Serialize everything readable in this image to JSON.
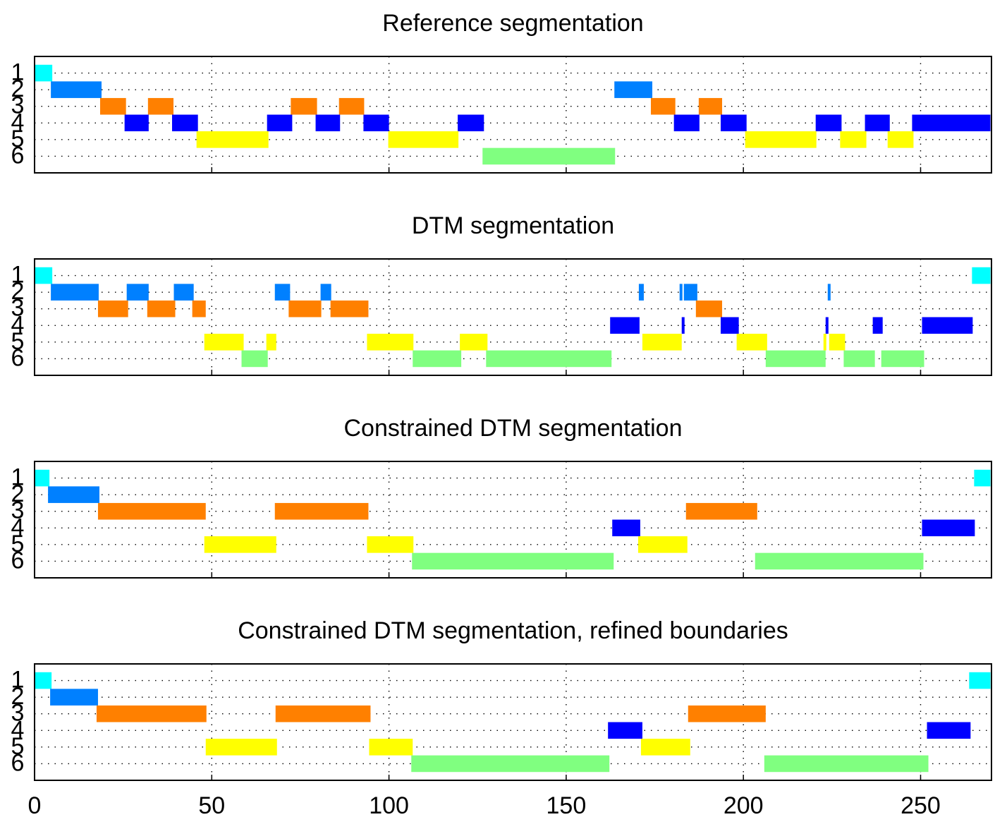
{
  "chart_data": [
    {
      "type": "segments",
      "title": "Reference segmentation",
      "xlim": [
        0,
        270
      ],
      "xticks": [
        0,
        50,
        100,
        150,
        200,
        250
      ],
      "ylim": [
        7,
        0
      ],
      "yticks": [
        1,
        2,
        3,
        4,
        5,
        6
      ],
      "grid": true,
      "series": [
        {
          "row": 1,
          "color": "#00ffff",
          "segments": [
            [
              0,
              5
            ]
          ]
        },
        {
          "row": 2,
          "color": "#0080ff",
          "segments": [
            [
              4.6,
              18.9
            ],
            [
              163.6,
              174.3
            ]
          ]
        },
        {
          "row": 3,
          "color": "#ff8000",
          "segments": [
            [
              18.5,
              25.8
            ],
            [
              32,
              39.2
            ],
            [
              72.3,
              79.7
            ],
            [
              85.9,
              93
            ],
            [
              173.9,
              180.8
            ],
            [
              187.4,
              194
            ]
          ]
        },
        {
          "row": 4,
          "color": "#0000ff",
          "segments": [
            [
              25.4,
              32.2
            ],
            [
              38.8,
              46.1
            ],
            [
              65.6,
              72.7
            ],
            [
              79.3,
              86.2
            ],
            [
              92.8,
              100
            ],
            [
              119.4,
              126.8
            ],
            [
              180.4,
              187.6
            ],
            [
              193.6,
              200.9
            ],
            [
              220.4,
              227.7
            ],
            [
              234.3,
              241.3
            ],
            [
              247.6,
              269.7
            ]
          ]
        },
        {
          "row": 5,
          "color": "#ffff00",
          "segments": [
            [
              45.7,
              66
            ],
            [
              99.8,
              119.6
            ],
            [
              200.5,
              220.6
            ],
            [
              227.3,
              234.7
            ],
            [
              240.7,
              248
            ]
          ]
        },
        {
          "row": 6,
          "color": "#80ff80",
          "segments": [
            [
              126.4,
              163.8
            ]
          ]
        }
      ]
    },
    {
      "type": "segments",
      "title": "DTM segmentation",
      "xlim": [
        0,
        270
      ],
      "xticks": [
        0,
        50,
        100,
        150,
        200,
        250
      ],
      "ylim": [
        7,
        0
      ],
      "yticks": [
        1,
        2,
        3,
        4,
        5,
        6
      ],
      "grid": true,
      "series": [
        {
          "row": 1,
          "color": "#00ffff",
          "segments": [
            [
              0,
              5
            ],
            [
              264.5,
              269.7
            ]
          ]
        },
        {
          "row": 2,
          "color": "#0080ff",
          "segments": [
            [
              4.6,
              18.1
            ],
            [
              26,
              32.2
            ],
            [
              39.3,
              44.9
            ],
            [
              67.8,
              72.1
            ],
            [
              80.7,
              83.7
            ],
            [
              170.5,
              171.9
            ],
            [
              182,
              182.8
            ],
            [
              183.2,
              187
            ],
            [
              223.8,
              224.6
            ]
          ]
        },
        {
          "row": 3,
          "color": "#ff8000",
          "segments": [
            [
              17.9,
              26.4
            ],
            [
              31.8,
              39.7
            ],
            [
              44.5,
              48.3
            ],
            [
              71.7,
              80.9
            ],
            [
              83.5,
              94.2
            ],
            [
              186.6,
              194
            ]
          ]
        },
        {
          "row": 4,
          "color": "#0000ff",
          "segments": [
            [
              162.4,
              170.7
            ],
            [
              182.6,
              183.4
            ],
            [
              193.6,
              198.7
            ],
            [
              223.2,
              224
            ],
            [
              236.5,
              239.3
            ],
            [
              250.4,
              264.7
            ]
          ]
        },
        {
          "row": 5,
          "color": "#ffff00",
          "segments": [
            [
              47.9,
              59
            ],
            [
              65.4,
              68.2
            ],
            [
              93.8,
              106.9
            ],
            [
              120,
              127.8
            ],
            [
              171.5,
              182.6
            ],
            [
              198.1,
              206.7
            ],
            [
              222.6,
              223.4
            ],
            [
              224.2,
              228.7
            ]
          ]
        },
        {
          "row": 6,
          "color": "#80ff80",
          "segments": [
            [
              58.4,
              65.8
            ],
            [
              106.7,
              120.4
            ],
            [
              127.4,
              162.8
            ],
            [
              206.3,
              223.2
            ],
            [
              228.3,
              237.1
            ],
            [
              238.9,
              251
            ]
          ]
        }
      ]
    },
    {
      "type": "segments",
      "title": "Constrained DTM segmentation",
      "xlim": [
        0,
        270
      ],
      "xticks": [
        0,
        50,
        100,
        150,
        200,
        250
      ],
      "ylim": [
        7,
        0
      ],
      "yticks": [
        1,
        2,
        3,
        4,
        5,
        6
      ],
      "grid": true,
      "series": [
        {
          "row": 1,
          "color": "#00ffff",
          "segments": [
            [
              0,
              4.2
            ],
            [
              265.1,
              269.7
            ]
          ]
        },
        {
          "row": 2,
          "color": "#0080ff",
          "segments": [
            [
              3.8,
              18.3
            ]
          ]
        },
        {
          "row": 3,
          "color": "#ff8000",
          "segments": [
            [
              17.9,
              48.3
            ],
            [
              67.8,
              94.2
            ],
            [
              183.8,
              203.9
            ]
          ]
        },
        {
          "row": 4,
          "color": "#0000ff",
          "segments": [
            [
              163,
              170.9
            ],
            [
              250.4,
              265.3
            ]
          ]
        },
        {
          "row": 5,
          "color": "#ffff00",
          "segments": [
            [
              47.9,
              68.2
            ],
            [
              93.8,
              106.9
            ],
            [
              170.3,
              184.2
            ]
          ]
        },
        {
          "row": 6,
          "color": "#80ff80",
          "segments": [
            [
              106.5,
              163.4
            ],
            [
              203.3,
              250.8
            ]
          ]
        }
      ]
    },
    {
      "type": "segments",
      "title": "Constrained DTM segmentation, refined boundaries",
      "xlim": [
        0,
        270
      ],
      "xticks": [
        0,
        50,
        100,
        150,
        200,
        250
      ],
      "ylim": [
        7,
        0
      ],
      "yticks": [
        1,
        2,
        3,
        4,
        5,
        6
      ],
      "grid": true,
      "series": [
        {
          "row": 1,
          "color": "#00ffff",
          "segments": [
            [
              0,
              4.8
            ],
            [
              263.7,
              269.7
            ]
          ]
        },
        {
          "row": 2,
          "color": "#0080ff",
          "segments": [
            [
              4.4,
              17.9
            ]
          ]
        },
        {
          "row": 3,
          "color": "#ff8000",
          "segments": [
            [
              17.5,
              48.5
            ],
            [
              68,
              94.8
            ],
            [
              184.4,
              206.3
            ]
          ]
        },
        {
          "row": 4,
          "color": "#0000ff",
          "segments": [
            [
              161.8,
              171.5
            ],
            [
              251.8,
              264.1
            ]
          ]
        },
        {
          "row": 5,
          "color": "#ffff00",
          "segments": [
            [
              48.3,
              68.4
            ],
            [
              94.4,
              106.7
            ],
            [
              171.1,
              185
            ]
          ]
        },
        {
          "row": 6,
          "color": "#80ff80",
          "segments": [
            [
              106.3,
              162.2
            ],
            [
              205.9,
              252.2
            ]
          ]
        }
      ]
    }
  ]
}
